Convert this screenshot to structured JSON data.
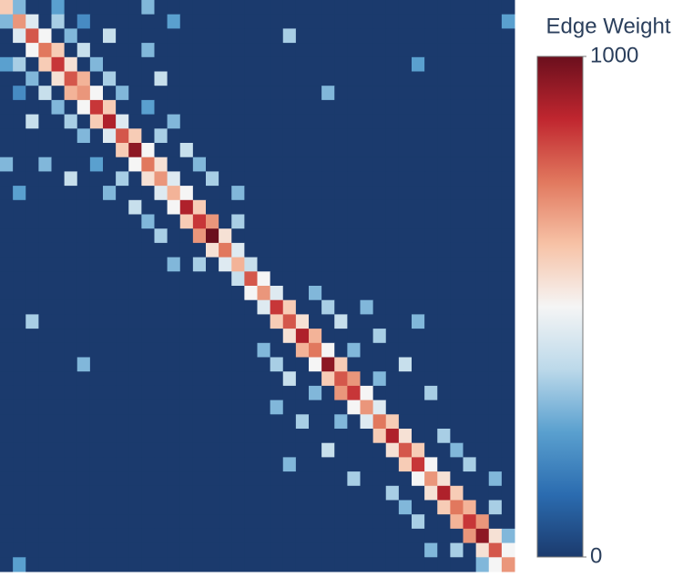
{
  "chart_data": {
    "type": "heatmap",
    "colorbar_title": "Edge Weight",
    "zlim": [
      0,
      1000
    ],
    "zticks": [
      0,
      1000
    ],
    "colorscale": [
      "#1b3a6d",
      "#2b6cb0",
      "#5aa0cf",
      "#bcd9ea",
      "#f5f5f5",
      "#f7c2a6",
      "#e1785e",
      "#c0262f",
      "#6b0f1d"
    ],
    "z": [
      [
        600,
        300,
        0,
        0,
        250,
        0,
        0,
        0,
        0,
        0,
        0,
        300,
        0,
        0,
        0,
        0,
        0,
        0,
        0,
        0,
        0,
        0,
        0,
        0,
        0,
        0,
        0,
        0,
        0,
        0,
        0,
        0,
        0,
        0,
        0,
        0,
        0,
        0,
        0,
        0
      ],
      [
        300,
        700,
        450,
        0,
        350,
        0,
        200,
        0,
        0,
        0,
        0,
        0,
        0,
        250,
        0,
        0,
        0,
        0,
        0,
        0,
        0,
        0,
        0,
        0,
        0,
        0,
        0,
        0,
        0,
        0,
        0,
        0,
        0,
        0,
        0,
        0,
        0,
        0,
        0,
        250
      ],
      [
        0,
        450,
        800,
        500,
        0,
        300,
        0,
        0,
        400,
        0,
        0,
        0,
        0,
        0,
        0,
        0,
        0,
        0,
        0,
        0,
        0,
        0,
        350,
        0,
        0,
        0,
        0,
        0,
        0,
        0,
        0,
        0,
        0,
        0,
        0,
        0,
        0,
        0,
        0,
        0
      ],
      [
        0,
        0,
        500,
        750,
        600,
        0,
        400,
        0,
        0,
        0,
        0,
        300,
        0,
        0,
        0,
        0,
        0,
        0,
        0,
        0,
        0,
        0,
        0,
        0,
        0,
        0,
        0,
        0,
        0,
        0,
        0,
        0,
        0,
        0,
        0,
        0,
        0,
        0,
        0,
        0
      ],
      [
        250,
        350,
        0,
        600,
        850,
        550,
        0,
        300,
        0,
        0,
        0,
        0,
        0,
        0,
        0,
        0,
        0,
        0,
        0,
        0,
        0,
        0,
        0,
        0,
        0,
        0,
        0,
        0,
        0,
        0,
        0,
        0,
        250,
        0,
        0,
        0,
        0,
        0,
        0,
        0
      ],
      [
        0,
        0,
        300,
        0,
        550,
        800,
        650,
        0,
        350,
        0,
        0,
        0,
        400,
        0,
        0,
        0,
        0,
        0,
        0,
        0,
        0,
        0,
        0,
        0,
        0,
        0,
        0,
        0,
        0,
        0,
        0,
        0,
        0,
        0,
        0,
        0,
        0,
        0,
        0,
        0
      ],
      [
        0,
        200,
        0,
        400,
        0,
        650,
        700,
        500,
        0,
        300,
        0,
        0,
        0,
        0,
        0,
        0,
        0,
        0,
        0,
        0,
        0,
        0,
        0,
        0,
        0,
        300,
        0,
        0,
        0,
        0,
        0,
        0,
        0,
        0,
        0,
        0,
        0,
        0,
        0,
        0
      ],
      [
        0,
        0,
        0,
        0,
        300,
        0,
        500,
        850,
        600,
        0,
        0,
        250,
        0,
        0,
        0,
        0,
        0,
        0,
        0,
        0,
        0,
        0,
        0,
        0,
        0,
        0,
        0,
        0,
        0,
        0,
        0,
        0,
        0,
        0,
        0,
        0,
        0,
        0,
        0,
        0
      ],
      [
        0,
        0,
        400,
        0,
        0,
        350,
        0,
        600,
        900,
        450,
        0,
        0,
        0,
        300,
        0,
        0,
        0,
        0,
        0,
        0,
        0,
        0,
        0,
        0,
        0,
        0,
        0,
        0,
        0,
        0,
        0,
        0,
        0,
        0,
        0,
        0,
        0,
        0,
        0,
        0
      ],
      [
        0,
        0,
        0,
        0,
        0,
        0,
        300,
        0,
        450,
        800,
        600,
        0,
        350,
        0,
        0,
        0,
        0,
        0,
        0,
        0,
        0,
        0,
        0,
        0,
        0,
        0,
        0,
        0,
        0,
        0,
        0,
        0,
        0,
        0,
        0,
        0,
        0,
        0,
        0,
        0
      ],
      [
        0,
        0,
        0,
        0,
        0,
        0,
        0,
        0,
        0,
        600,
        950,
        500,
        0,
        0,
        400,
        0,
        0,
        0,
        0,
        0,
        0,
        0,
        0,
        0,
        0,
        0,
        0,
        0,
        0,
        0,
        0,
        0,
        0,
        0,
        0,
        0,
        0,
        0,
        0,
        0
      ],
      [
        300,
        0,
        0,
        300,
        0,
        0,
        0,
        250,
        0,
        0,
        500,
        750,
        550,
        0,
        0,
        300,
        0,
        0,
        0,
        0,
        0,
        0,
        0,
        0,
        0,
        0,
        0,
        0,
        0,
        0,
        0,
        0,
        0,
        0,
        0,
        0,
        0,
        0,
        0,
        0
      ],
      [
        0,
        0,
        0,
        0,
        0,
        400,
        0,
        0,
        0,
        350,
        0,
        550,
        700,
        450,
        0,
        0,
        350,
        0,
        0,
        0,
        0,
        0,
        0,
        0,
        0,
        0,
        0,
        0,
        0,
        0,
        0,
        0,
        0,
        0,
        0,
        0,
        0,
        0,
        0,
        0
      ],
      [
        0,
        250,
        0,
        0,
        0,
        0,
        0,
        0,
        300,
        0,
        0,
        0,
        450,
        650,
        500,
        0,
        0,
        0,
        300,
        0,
        0,
        0,
        0,
        0,
        0,
        0,
        0,
        0,
        0,
        0,
        0,
        0,
        0,
        0,
        0,
        0,
        0,
        0,
        0,
        0
      ],
      [
        0,
        0,
        0,
        0,
        0,
        0,
        0,
        0,
        0,
        0,
        400,
        0,
        0,
        500,
        900,
        600,
        0,
        0,
        0,
        0,
        0,
        0,
        0,
        0,
        0,
        0,
        0,
        0,
        0,
        0,
        0,
        0,
        0,
        0,
        0,
        0,
        0,
        0,
        0,
        0
      ],
      [
        0,
        0,
        0,
        0,
        0,
        0,
        0,
        0,
        0,
        0,
        0,
        300,
        0,
        0,
        600,
        850,
        700,
        0,
        350,
        0,
        0,
        0,
        0,
        0,
        0,
        0,
        0,
        0,
        0,
        0,
        0,
        0,
        0,
        0,
        0,
        0,
        0,
        0,
        0,
        0
      ],
      [
        0,
        0,
        0,
        0,
        0,
        0,
        0,
        0,
        0,
        0,
        0,
        0,
        350,
        0,
        0,
        700,
        1000,
        550,
        0,
        0,
        0,
        0,
        0,
        0,
        0,
        0,
        0,
        0,
        0,
        0,
        0,
        0,
        0,
        0,
        0,
        0,
        0,
        0,
        0,
        0
      ],
      [
        0,
        0,
        0,
        0,
        0,
        0,
        0,
        0,
        0,
        0,
        0,
        0,
        0,
        0,
        0,
        0,
        550,
        750,
        450,
        0,
        0,
        0,
        0,
        0,
        0,
        0,
        0,
        0,
        0,
        0,
        0,
        0,
        0,
        0,
        0,
        0,
        0,
        0,
        0,
        0
      ],
      [
        0,
        0,
        0,
        0,
        0,
        0,
        0,
        0,
        0,
        0,
        0,
        0,
        0,
        300,
        0,
        350,
        0,
        450,
        650,
        400,
        0,
        0,
        0,
        0,
        0,
        0,
        0,
        0,
        0,
        0,
        0,
        0,
        0,
        0,
        0,
        0,
        0,
        0,
        0,
        0
      ],
      [
        0,
        0,
        0,
        0,
        0,
        0,
        0,
        0,
        0,
        0,
        0,
        0,
        0,
        0,
        0,
        0,
        0,
        0,
        400,
        800,
        500,
        0,
        0,
        0,
        0,
        0,
        0,
        0,
        0,
        0,
        0,
        0,
        0,
        0,
        0,
        0,
        0,
        0,
        0,
        0
      ],
      [
        0,
        0,
        0,
        0,
        0,
        0,
        0,
        0,
        0,
        0,
        0,
        0,
        0,
        0,
        0,
        0,
        0,
        0,
        0,
        500,
        700,
        450,
        0,
        0,
        300,
        0,
        0,
        0,
        0,
        0,
        0,
        0,
        0,
        0,
        0,
        0,
        0,
        0,
        0,
        0
      ],
      [
        0,
        0,
        0,
        0,
        0,
        0,
        0,
        0,
        0,
        0,
        0,
        0,
        0,
        0,
        0,
        0,
        0,
        0,
        0,
        0,
        450,
        850,
        600,
        0,
        0,
        350,
        0,
        0,
        300,
        0,
        0,
        0,
        0,
        0,
        0,
        0,
        0,
        0,
        0,
        0
      ],
      [
        0,
        0,
        350,
        0,
        0,
        0,
        0,
        0,
        0,
        0,
        0,
        0,
        0,
        0,
        0,
        0,
        0,
        0,
        0,
        0,
        0,
        600,
        800,
        550,
        0,
        0,
        400,
        0,
        0,
        0,
        0,
        0,
        300,
        0,
        0,
        0,
        0,
        0,
        0,
        0
      ],
      [
        0,
        0,
        0,
        0,
        0,
        0,
        0,
        0,
        0,
        0,
        0,
        0,
        0,
        0,
        0,
        0,
        0,
        0,
        0,
        0,
        0,
        0,
        550,
        900,
        650,
        0,
        0,
        0,
        0,
        350,
        0,
        0,
        0,
        0,
        0,
        0,
        0,
        0,
        0,
        0
      ],
      [
        0,
        0,
        0,
        0,
        0,
        0,
        0,
        0,
        0,
        0,
        0,
        0,
        0,
        0,
        0,
        0,
        0,
        0,
        0,
        0,
        300,
        0,
        0,
        650,
        750,
        500,
        0,
        300,
        0,
        0,
        0,
        0,
        0,
        0,
        0,
        0,
        0,
        0,
        0,
        0
      ],
      [
        0,
        0,
        0,
        0,
        0,
        0,
        300,
        0,
        0,
        0,
        0,
        0,
        0,
        0,
        0,
        0,
        0,
        0,
        0,
        0,
        0,
        350,
        0,
        0,
        500,
        950,
        600,
        0,
        0,
        0,
        0,
        400,
        0,
        0,
        0,
        0,
        0,
        0,
        0,
        0
      ],
      [
        0,
        0,
        0,
        0,
        0,
        0,
        0,
        0,
        0,
        0,
        0,
        0,
        0,
        0,
        0,
        0,
        0,
        0,
        0,
        0,
        0,
        0,
        400,
        0,
        0,
        600,
        800,
        700,
        0,
        300,
        0,
        0,
        0,
        0,
        0,
        0,
        0,
        0,
        0,
        0
      ],
      [
        0,
        0,
        0,
        0,
        0,
        0,
        0,
        0,
        0,
        0,
        0,
        0,
        0,
        0,
        0,
        0,
        0,
        0,
        0,
        0,
        0,
        0,
        0,
        0,
        300,
        0,
        700,
        850,
        500,
        0,
        0,
        0,
        0,
        350,
        0,
        0,
        0,
        0,
        0,
        0
      ],
      [
        0,
        0,
        0,
        0,
        0,
        0,
        0,
        0,
        0,
        0,
        0,
        0,
        0,
        0,
        0,
        0,
        0,
        0,
        0,
        0,
        0,
        300,
        0,
        0,
        0,
        0,
        0,
        500,
        700,
        450,
        0,
        0,
        0,
        0,
        0,
        0,
        0,
        0,
        0,
        0
      ],
      [
        0,
        0,
        0,
        0,
        0,
        0,
        0,
        0,
        0,
        0,
        0,
        0,
        0,
        0,
        0,
        0,
        0,
        0,
        0,
        0,
        0,
        0,
        0,
        350,
        0,
        0,
        300,
        0,
        450,
        750,
        600,
        0,
        0,
        0,
        0,
        0,
        0,
        0,
        0,
        0
      ],
      [
        0,
        0,
        0,
        0,
        0,
        0,
        0,
        0,
        0,
        0,
        0,
        0,
        0,
        0,
        0,
        0,
        0,
        0,
        0,
        0,
        0,
        0,
        0,
        0,
        0,
        0,
        0,
        0,
        0,
        600,
        900,
        550,
        0,
        0,
        350,
        0,
        0,
        0,
        0,
        0
      ],
      [
        0,
        0,
        0,
        0,
        0,
        0,
        0,
        0,
        0,
        0,
        0,
        0,
        0,
        0,
        0,
        0,
        0,
        0,
        0,
        0,
        0,
        0,
        0,
        0,
        0,
        400,
        0,
        0,
        0,
        0,
        550,
        800,
        600,
        0,
        0,
        300,
        0,
        0,
        0,
        0
      ],
      [
        0,
        0,
        0,
        0,
        0,
        0,
        0,
        0,
        0,
        0,
        0,
        0,
        0,
        0,
        0,
        0,
        0,
        0,
        0,
        0,
        0,
        0,
        300,
        0,
        0,
        0,
        0,
        0,
        0,
        0,
        0,
        600,
        850,
        500,
        0,
        0,
        350,
        0,
        0,
        0
      ],
      [
        0,
        0,
        0,
        0,
        0,
        0,
        0,
        0,
        0,
        0,
        0,
        0,
        0,
        0,
        0,
        0,
        0,
        0,
        0,
        0,
        0,
        0,
        0,
        0,
        0,
        0,
        0,
        350,
        0,
        0,
        0,
        0,
        500,
        700,
        550,
        0,
        0,
        0,
        300,
        0
      ],
      [
        0,
        0,
        0,
        0,
        0,
        0,
        0,
        0,
        0,
        0,
        0,
        0,
        0,
        0,
        0,
        0,
        0,
        0,
        0,
        0,
        0,
        0,
        0,
        0,
        0,
        0,
        0,
        0,
        0,
        0,
        350,
        0,
        0,
        550,
        900,
        600,
        0,
        0,
        0,
        0
      ],
      [
        0,
        0,
        0,
        0,
        0,
        0,
        0,
        0,
        0,
        0,
        0,
        0,
        0,
        0,
        0,
        0,
        0,
        0,
        0,
        0,
        0,
        0,
        0,
        0,
        0,
        0,
        0,
        0,
        0,
        0,
        0,
        300,
        0,
        0,
        600,
        750,
        650,
        0,
        350,
        0
      ],
      [
        0,
        0,
        0,
        0,
        0,
        0,
        0,
        0,
        0,
        0,
        0,
        0,
        0,
        0,
        0,
        0,
        0,
        0,
        0,
        0,
        0,
        0,
        0,
        0,
        0,
        0,
        0,
        0,
        0,
        0,
        0,
        0,
        350,
        0,
        0,
        650,
        850,
        700,
        0,
        0
      ],
      [
        0,
        0,
        0,
        0,
        0,
        0,
        0,
        0,
        0,
        0,
        0,
        0,
        0,
        0,
        0,
        0,
        0,
        0,
        0,
        0,
        0,
        0,
        0,
        0,
        0,
        0,
        0,
        0,
        0,
        0,
        0,
        0,
        0,
        0,
        0,
        0,
        700,
        950,
        550,
        300
      ],
      [
        0,
        0,
        0,
        0,
        0,
        0,
        0,
        0,
        0,
        0,
        0,
        0,
        0,
        0,
        0,
        0,
        0,
        0,
        0,
        0,
        0,
        0,
        0,
        0,
        0,
        0,
        0,
        0,
        0,
        0,
        0,
        0,
        0,
        300,
        0,
        350,
        0,
        550,
        800,
        500
      ],
      [
        0,
        250,
        0,
        0,
        0,
        0,
        0,
        0,
        0,
        0,
        0,
        0,
        0,
        0,
        0,
        0,
        0,
        0,
        0,
        0,
        0,
        0,
        0,
        0,
        0,
        0,
        0,
        0,
        0,
        0,
        0,
        0,
        0,
        0,
        0,
        0,
        0,
        300,
        500,
        700
      ]
    ]
  }
}
